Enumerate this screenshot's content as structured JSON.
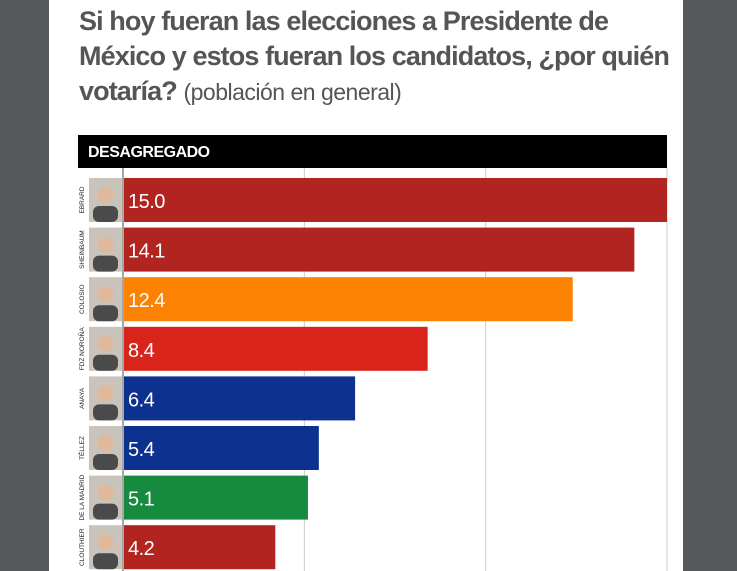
{
  "title": "Si hoy fueran las elecciones a Presidente de México y estos fueran los candidatos, ¿por quién votaría?",
  "subtitle": "(población en general)",
  "chart_data": {
    "type": "bar",
    "orientation": "horizontal",
    "header": "DESAGREGADO",
    "categories": [
      "EBRARD",
      "SHEINBAUM",
      "COLOSIO",
      "FDZ NOROÑA",
      "ANAYA",
      "TÉLLEZ",
      "DE LA MADRID",
      "CLOUTHIER"
    ],
    "values": [
      15.0,
      14.1,
      12.4,
      8.4,
      6.4,
      5.4,
      5.1,
      4.2
    ],
    "value_labels": [
      "15.0",
      "14.1",
      "12.4",
      "8.4",
      "6.4",
      "5.4",
      "5.1",
      "4.2"
    ],
    "colors": [
      "#b22420",
      "#b22420",
      "#fb8203",
      "#d9241b",
      "#0d318f",
      "#0d318f",
      "#168a3f",
      "#b22420"
    ],
    "xlim": [
      0,
      15
    ],
    "grid": true,
    "gridlines": [
      5,
      10,
      15
    ]
  }
}
